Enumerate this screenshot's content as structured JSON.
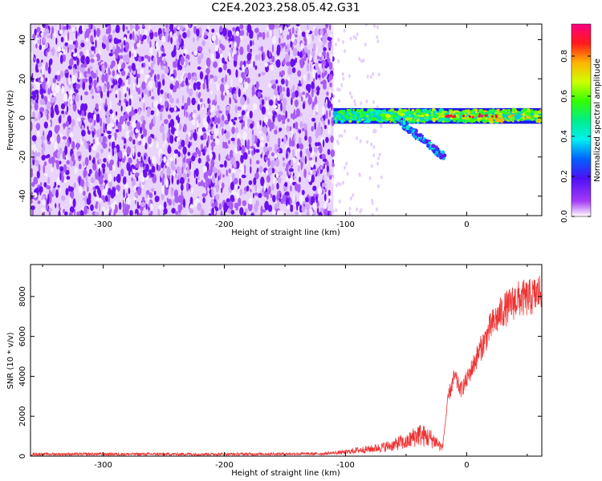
{
  "figure_title": "C2E4.2023.258.05.42.G31",
  "chart_data": [
    {
      "type": "heatmap",
      "title": "C2E4.2023.258.05.42.G31",
      "xlabel": "Height of straight line (km)",
      "ylabel": "Frequency (Hz)",
      "xlim": [
        -360,
        62
      ],
      "ylim": [
        -50,
        48
      ],
      "x_ticks": [
        -300,
        -200,
        -100,
        0
      ],
      "y_ticks": [
        -40,
        -20,
        0,
        20,
        40
      ],
      "grid": false,
      "colorbar": {
        "label": "Normalized spectral amplitude",
        "range": [
          0,
          0.96
        ],
        "ticks": [
          0.0,
          0.2,
          0.4,
          0.6,
          0.8
        ],
        "colormap": "gnuplot rainbow (white - violet - blue - cyan - green - yellow - red - magenta)"
      },
      "regions": [
        {
          "x_range": [
            -360,
            -110
          ],
          "freq_range": [
            -50,
            48
          ],
          "amplitude": "low noise (~0.05-0.15)"
        },
        {
          "x_range": [
            -110,
            62
          ],
          "freq_center": 1,
          "freq_halfwidth": 4,
          "amplitude": "signal (~0.3-0.9)"
        },
        {
          "x_range": [
            -55,
            -18
          ],
          "freq_range": [
            -20,
            -8
          ],
          "amplitude": "branch (~0.2-0.4)"
        }
      ]
    },
    {
      "type": "line",
      "xlabel": "Height of straight line (km)",
      "ylabel": "SNR (10 * v/v)",
      "xlim": [
        -360,
        62
      ],
      "ylim": [
        0,
        9600
      ],
      "x_ticks": [
        -300,
        -200,
        -100,
        0
      ],
      "y_ticks": [
        0,
        2000,
        4000,
        6000,
        8000
      ],
      "grid": false,
      "series_color": "#ee3333",
      "x": [
        -360,
        -300,
        -200,
        -120,
        -100,
        -90,
        -80,
        -70,
        -60,
        -55,
        -50,
        -45,
        -40,
        -35,
        -30,
        -25,
        -20,
        -18,
        -15,
        -10,
        -5,
        0,
        5,
        10,
        15,
        20,
        25,
        30,
        35,
        40,
        45,
        50,
        55,
        60,
        62
      ],
      "y": [
        100,
        100,
        100,
        120,
        200,
        300,
        350,
        450,
        550,
        700,
        650,
        900,
        1100,
        1000,
        900,
        700,
        400,
        1500,
        3000,
        4000,
        3300,
        3800,
        4500,
        5200,
        5800,
        6500,
        6900,
        7300,
        7500,
        7800,
        7900,
        7900,
        8000,
        8200,
        8300
      ]
    }
  ],
  "colors": {
    "line": "#ee3333",
    "noise": "#9933ee",
    "signal_core": "#00ee66",
    "signal_edge": "#1111ee"
  }
}
